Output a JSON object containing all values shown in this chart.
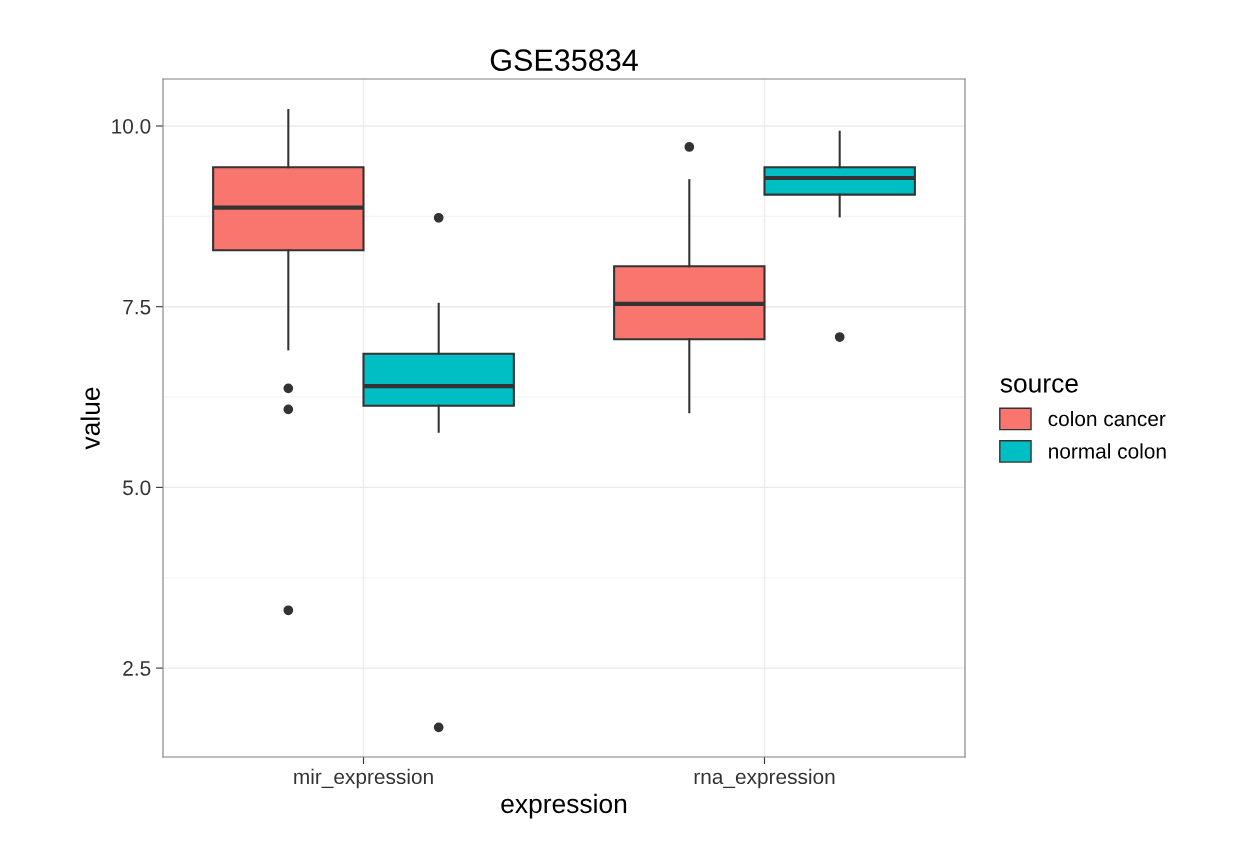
{
  "chart_data": {
    "type": "box",
    "title": "GSE35834",
    "xlabel": "expression",
    "ylabel": "value",
    "legend_title": "source",
    "categories": [
      "mir_expression",
      "rna_expression"
    ],
    "ylim": [
      1.27,
      10.65
    ],
    "yticks": [
      {
        "value": 2.5,
        "label": "2.5"
      },
      {
        "value": 5.0,
        "label": "5.0"
      },
      {
        "value": 7.5,
        "label": "7.5"
      },
      {
        "value": 10.0,
        "label": "10.0"
      }
    ],
    "grid": true,
    "legend": "right",
    "series": [
      {
        "name": "colon cancer",
        "color": "#f8766d",
        "boxes": [
          {
            "low": 6.91,
            "q1": 8.28,
            "median": 8.87,
            "q3": 9.43,
            "high": 10.22,
            "outliers": [
              6.37,
              6.08,
              3.3
            ]
          },
          {
            "low": 6.04,
            "q1": 7.05,
            "median": 7.54,
            "q3": 8.06,
            "high": 9.25,
            "outliers": [
              9.71
            ]
          }
        ]
      },
      {
        "name": "normal colon",
        "color": "#00bfc4",
        "boxes": [
          {
            "low": 5.77,
            "q1": 6.13,
            "median": 6.4,
            "q3": 6.85,
            "high": 7.54,
            "outliers": [
              8.73,
              1.68
            ]
          },
          {
            "low": 8.75,
            "q1": 9.05,
            "median": 9.28,
            "q3": 9.43,
            "high": 9.92,
            "outliers": [
              7.08
            ]
          }
        ]
      }
    ]
  }
}
